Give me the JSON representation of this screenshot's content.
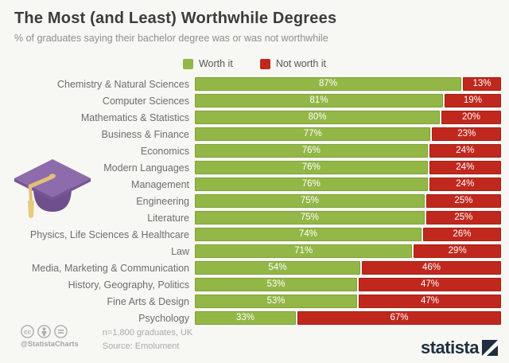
{
  "title": "The Most (and Least) Worthwhile Degrees",
  "subtitle": "% of graduates saying their bachelor degree was or was not worthwhile",
  "legend": {
    "worth_label": "Worth it",
    "not_worth_label": "Not worth it"
  },
  "colors": {
    "background": "#f7f7f3",
    "title": "#3c3c3c",
    "subtitle": "#8e8e8e",
    "worth": "#93b747",
    "worth_border": "#7fa136",
    "not_worth": "#c0281e",
    "not_worth_border": "#a21f15",
    "logo": "#1e2f3f"
  },
  "chart_data": {
    "type": "bar",
    "orientation": "horizontal",
    "stacked": true,
    "value_suffix": "%",
    "xlim": [
      0,
      100
    ],
    "legend_position": "top-center",
    "grid": false,
    "categories": [
      "Chemistry & Natural Sciences",
      "Computer Sciences",
      "Mathematics & Statistics",
      "Business & Finance",
      "Economics",
      "Modern Languages",
      "Management",
      "Engineering",
      "Literature",
      "Physics, Life Sciences & Healthcare",
      "Law",
      "Media, Marketing & Communication",
      "History, Geography, Politics",
      "Fine Arts & Design",
      "Psychology"
    ],
    "series": [
      {
        "name": "Worth it",
        "color": "#93b747",
        "values": [
          87,
          81,
          80,
          77,
          76,
          76,
          76,
          75,
          75,
          74,
          71,
          54,
          53,
          53,
          33
        ]
      },
      {
        "name": "Not worth it",
        "color": "#c0281e",
        "values": [
          13,
          19,
          20,
          23,
          24,
          24,
          24,
          25,
          25,
          26,
          29,
          46,
          47,
          47,
          67
        ]
      }
    ]
  },
  "illustration": "graduation-cap",
  "footer": {
    "license_icons": [
      "cc-icon",
      "attribution-icon",
      "no-derivatives-icon"
    ],
    "handle": "@StatistaCharts",
    "note": "n=1,800 graduates, UK",
    "source": "Source: Emolument",
    "brand": "statista"
  }
}
